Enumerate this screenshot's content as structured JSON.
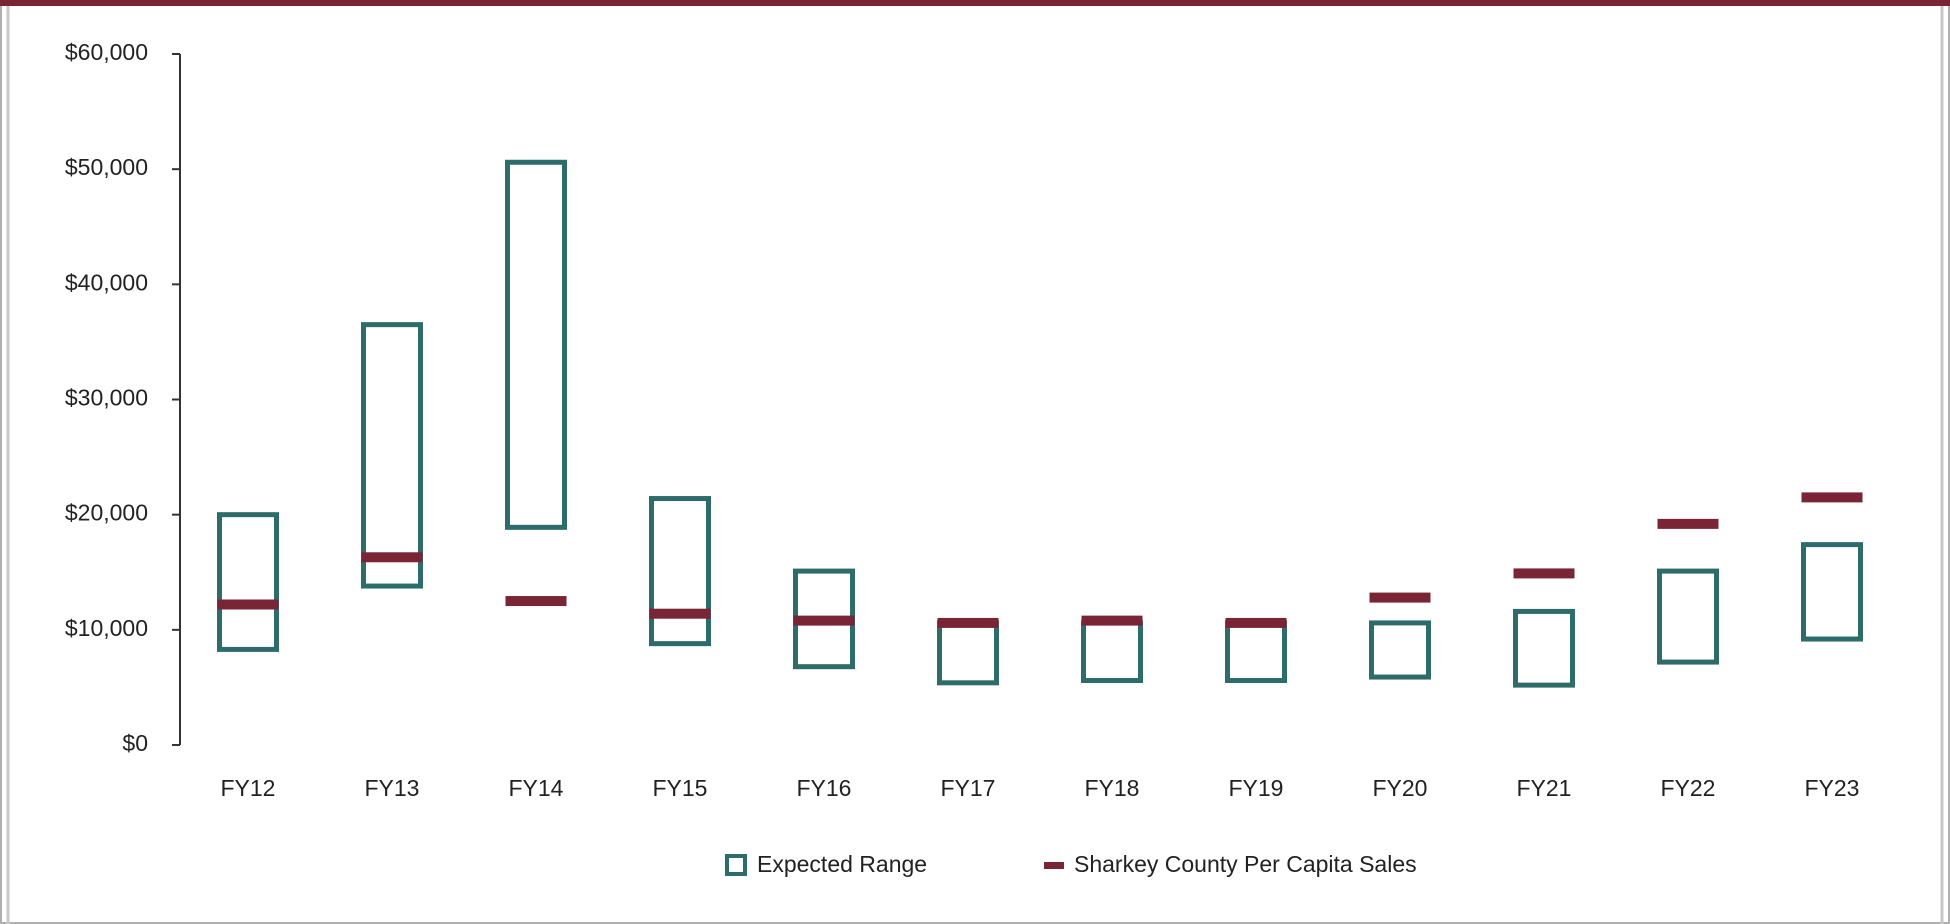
{
  "chart_data": {
    "type": "range_bar",
    "categories": [
      "FY12",
      "FY13",
      "FY14",
      "FY15",
      "FY16",
      "FY17",
      "FY18",
      "FY19",
      "FY20",
      "FY21",
      "FY22",
      "FY23"
    ],
    "series": [
      {
        "name": "Expected Range",
        "color": "#2e6b6b",
        "low": [
          8300,
          13800,
          18900,
          8800,
          6800,
          5400,
          5600,
          5600,
          5900,
          5200,
          7200,
          9200
        ],
        "high": [
          20000,
          36500,
          50600,
          21400,
          15100,
          10600,
          10600,
          10600,
          10600,
          11600,
          15100,
          17400
        ]
      },
      {
        "name": "Sharkey County Per Capita Sales",
        "color": "#7a2535",
        "values": [
          12200,
          16300,
          12500,
          11400,
          10800,
          10600,
          10800,
          10600,
          12800,
          14900,
          19200,
          21500
        ]
      }
    ],
    "ylim": [
      0,
      60000
    ],
    "yticks": [
      {
        "value": 0,
        "label": "$0"
      },
      {
        "value": 10000,
        "label": "$10,000"
      },
      {
        "value": 20000,
        "label": "$20,000"
      },
      {
        "value": 30000,
        "label": "$30,000"
      },
      {
        "value": 40000,
        "label": "$40,000"
      },
      {
        "value": 50000,
        "label": "$50,000"
      },
      {
        "value": 60000,
        "label": "$60,000"
      }
    ],
    "grid": false
  }
}
